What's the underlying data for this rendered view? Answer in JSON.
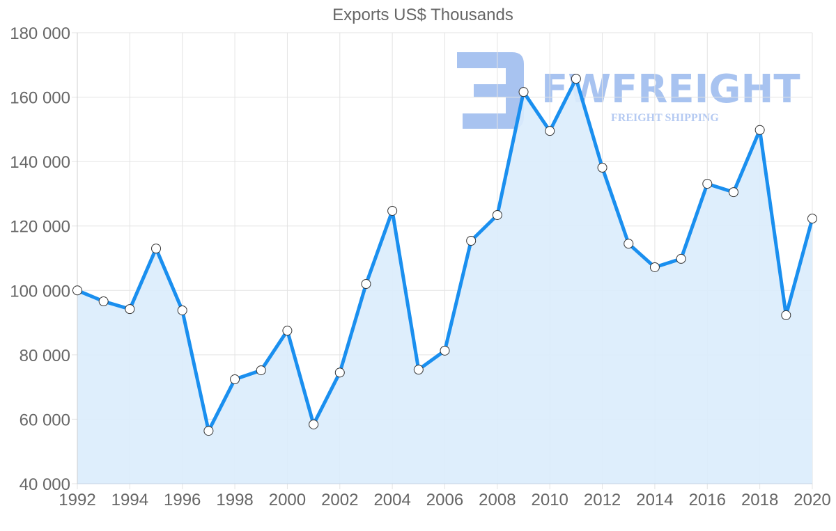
{
  "chart_data": {
    "type": "line",
    "title": "Exports US$ Thousands",
    "xlabel": "",
    "ylabel": "",
    "fill_area": true,
    "grid": true,
    "legend": "none",
    "ylim": [
      40000,
      180000
    ],
    "xlim": [
      1992,
      2020
    ],
    "y_ticks": [
      "40 000",
      "60 000",
      "80 000",
      "100 000",
      "120 000",
      "140 000",
      "160 000",
      "180 000"
    ],
    "y_tick_values": [
      40000,
      60000,
      80000,
      100000,
      120000,
      140000,
      160000,
      180000
    ],
    "x_ticks": [
      "1992",
      "1994",
      "1996",
      "1998",
      "2000",
      "2002",
      "2004",
      "2006",
      "2008",
      "2010",
      "2012",
      "2014",
      "2016",
      "2018",
      "2020"
    ],
    "x": [
      1992,
      1993,
      1994,
      1995,
      1996,
      1997,
      1998,
      1999,
      2000,
      2001,
      2002,
      2003,
      2004,
      2005,
      2006,
      2007,
      2008,
      2009,
      2010,
      2011,
      2012,
      2013,
      2014,
      2015,
      2016,
      2017,
      2018,
      2019,
      2020
    ],
    "series": [
      {
        "name": "Exports US$ Thousands",
        "values": [
          100000,
          96600,
          94200,
          113000,
          93800,
          56400,
          72400,
          75200,
          87500,
          58400,
          74500,
          102000,
          124700,
          75400,
          81300,
          115400,
          123400,
          161600,
          149500,
          165700,
          138100,
          114500,
          107200,
          109800,
          133100,
          130500,
          149800,
          92300,
          122300
        ]
      }
    ]
  },
  "watermark": {
    "brand": "FWFREIGHT",
    "tagline": "FREIGHT SHIPPING"
  },
  "colors": {
    "line": "#1a8fef",
    "fill": "#daecfc",
    "grid": "#e3e3e3",
    "axis_text": "#666666",
    "marker_fill": "#ffffff",
    "marker_stroke": "#333333",
    "watermark": "#a8c3f0"
  }
}
